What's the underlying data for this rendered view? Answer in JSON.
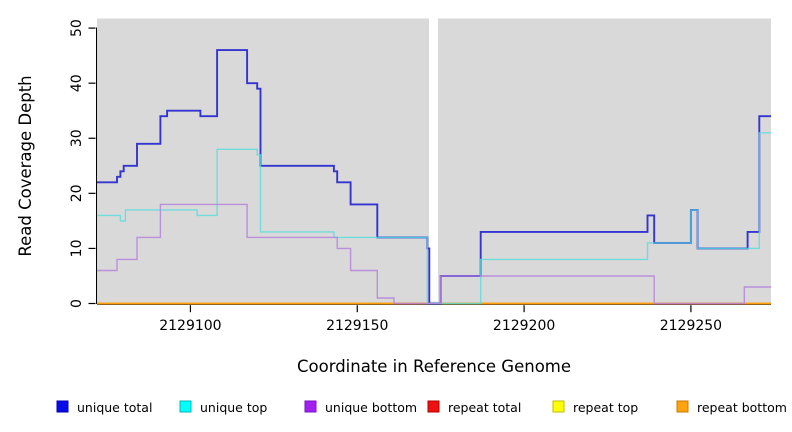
{
  "figure": {
    "background": "#ffffff"
  },
  "axes": {
    "x": {
      "title": "Coordinate in Reference Genome",
      "ticks": [
        2129100,
        2129150,
        2129200,
        2129250
      ],
      "tick_labels": [
        "2129100",
        "2129150",
        "2129200",
        "2129250"
      ]
    },
    "y": {
      "title": "Read Coverage Depth",
      "ticks": [
        0,
        10,
        20,
        30,
        40,
        50
      ],
      "tick_labels": [
        "0",
        "10",
        "20",
        "30",
        "40",
        "50"
      ]
    }
  },
  "chart_data": {
    "type": "line",
    "style": "step",
    "title": "",
    "xlabel": "Coordinate in Reference Genome",
    "ylabel": "Read Coverage Depth",
    "xlim": [
      2129072,
      2129274
    ],
    "ylim": [
      0,
      51.8
    ],
    "grid": false,
    "plot_background": "#d9d9d9",
    "gap_region": {
      "x_start": 2129171.5,
      "x_end": 2129174.2,
      "color": "#ffffff",
      "note": "white no-data band"
    },
    "legend_position": "bottom",
    "x_end": 2129274,
    "series": [
      {
        "name": "repeat total",
        "color": "#dd2020",
        "width": 1.4,
        "opacity": 1,
        "steps": [
          [
            2129072,
            0
          ]
        ]
      },
      {
        "name": "repeat top",
        "color": "#f2e900",
        "width": 1.4,
        "opacity": 1,
        "steps": [
          [
            2129072,
            0
          ]
        ]
      },
      {
        "name": "repeat bottom",
        "color": "#ff9d0f",
        "width": 1.7,
        "opacity": 1,
        "steps": [
          [
            2129072,
            0
          ]
        ]
      },
      {
        "name": "unique total",
        "color": "#3434d0",
        "width": 1.9,
        "opacity": 1,
        "steps": [
          [
            2129072,
            22
          ],
          [
            2129078,
            23
          ],
          [
            2129079,
            24
          ],
          [
            2129080,
            25
          ],
          [
            2129084,
            29
          ],
          [
            2129091,
            34
          ],
          [
            2129093,
            35
          ],
          [
            2129103,
            34
          ],
          [
            2129108,
            46
          ],
          [
            2129117,
            40
          ],
          [
            2129120,
            39
          ],
          [
            2129121,
            25
          ],
          [
            2129143,
            24
          ],
          [
            2129144,
            22
          ],
          [
            2129148,
            18
          ],
          [
            2129156,
            12
          ],
          [
            2129171,
            10
          ],
          [
            2129171.6,
            0
          ],
          [
            2129175,
            5
          ],
          [
            2129187,
            13
          ],
          [
            2129237,
            16
          ],
          [
            2129239,
            11
          ],
          [
            2129250,
            17
          ],
          [
            2129252,
            10
          ],
          [
            2129267,
            13
          ],
          [
            2129270.5,
            34
          ]
        ]
      },
      {
        "name": "unique top",
        "color": "#55dcdc",
        "width": 1.4,
        "opacity": 0.8,
        "steps": [
          [
            2129072,
            16
          ],
          [
            2129079,
            15
          ],
          [
            2129080.5,
            17
          ],
          [
            2129102,
            16
          ],
          [
            2129108,
            28
          ],
          [
            2129120,
            27
          ],
          [
            2129121,
            13
          ],
          [
            2129143,
            12
          ],
          [
            2129171,
            0
          ],
          [
            2129187,
            8
          ],
          [
            2129237,
            11
          ],
          [
            2129250,
            17
          ],
          [
            2129252,
            10
          ],
          [
            2129270.5,
            31
          ]
        ]
      },
      {
        "name": "unique bottom",
        "color": "#b583da",
        "width": 1.4,
        "opacity": 0.85,
        "steps": [
          [
            2129072,
            6
          ],
          [
            2129078,
            8
          ],
          [
            2129084,
            12
          ],
          [
            2129091,
            18
          ],
          [
            2129117,
            12
          ],
          [
            2129144,
            10
          ],
          [
            2129148,
            6
          ],
          [
            2129156,
            1
          ],
          [
            2129161,
            0
          ],
          [
            2129175,
            5
          ],
          [
            2129239,
            0
          ],
          [
            2129266,
            3
          ]
        ]
      }
    ]
  },
  "legend": {
    "items": [
      {
        "label": "unique total",
        "color": "#0a0ae8",
        "border": "#0000b4"
      },
      {
        "label": "unique top",
        "color": "#00ffff",
        "border": "#00b9b9"
      },
      {
        "label": "unique bottom",
        "color": "#a021f0",
        "border": "#7a14bc"
      },
      {
        "label": "repeat total",
        "color": "#ee1111",
        "border": "#b40000"
      },
      {
        "label": "repeat top",
        "color": "#ffff00",
        "border": "#bdbd00"
      },
      {
        "label": "repeat bottom",
        "color": "#ffa30f",
        "border": "#c47a00"
      }
    ]
  }
}
